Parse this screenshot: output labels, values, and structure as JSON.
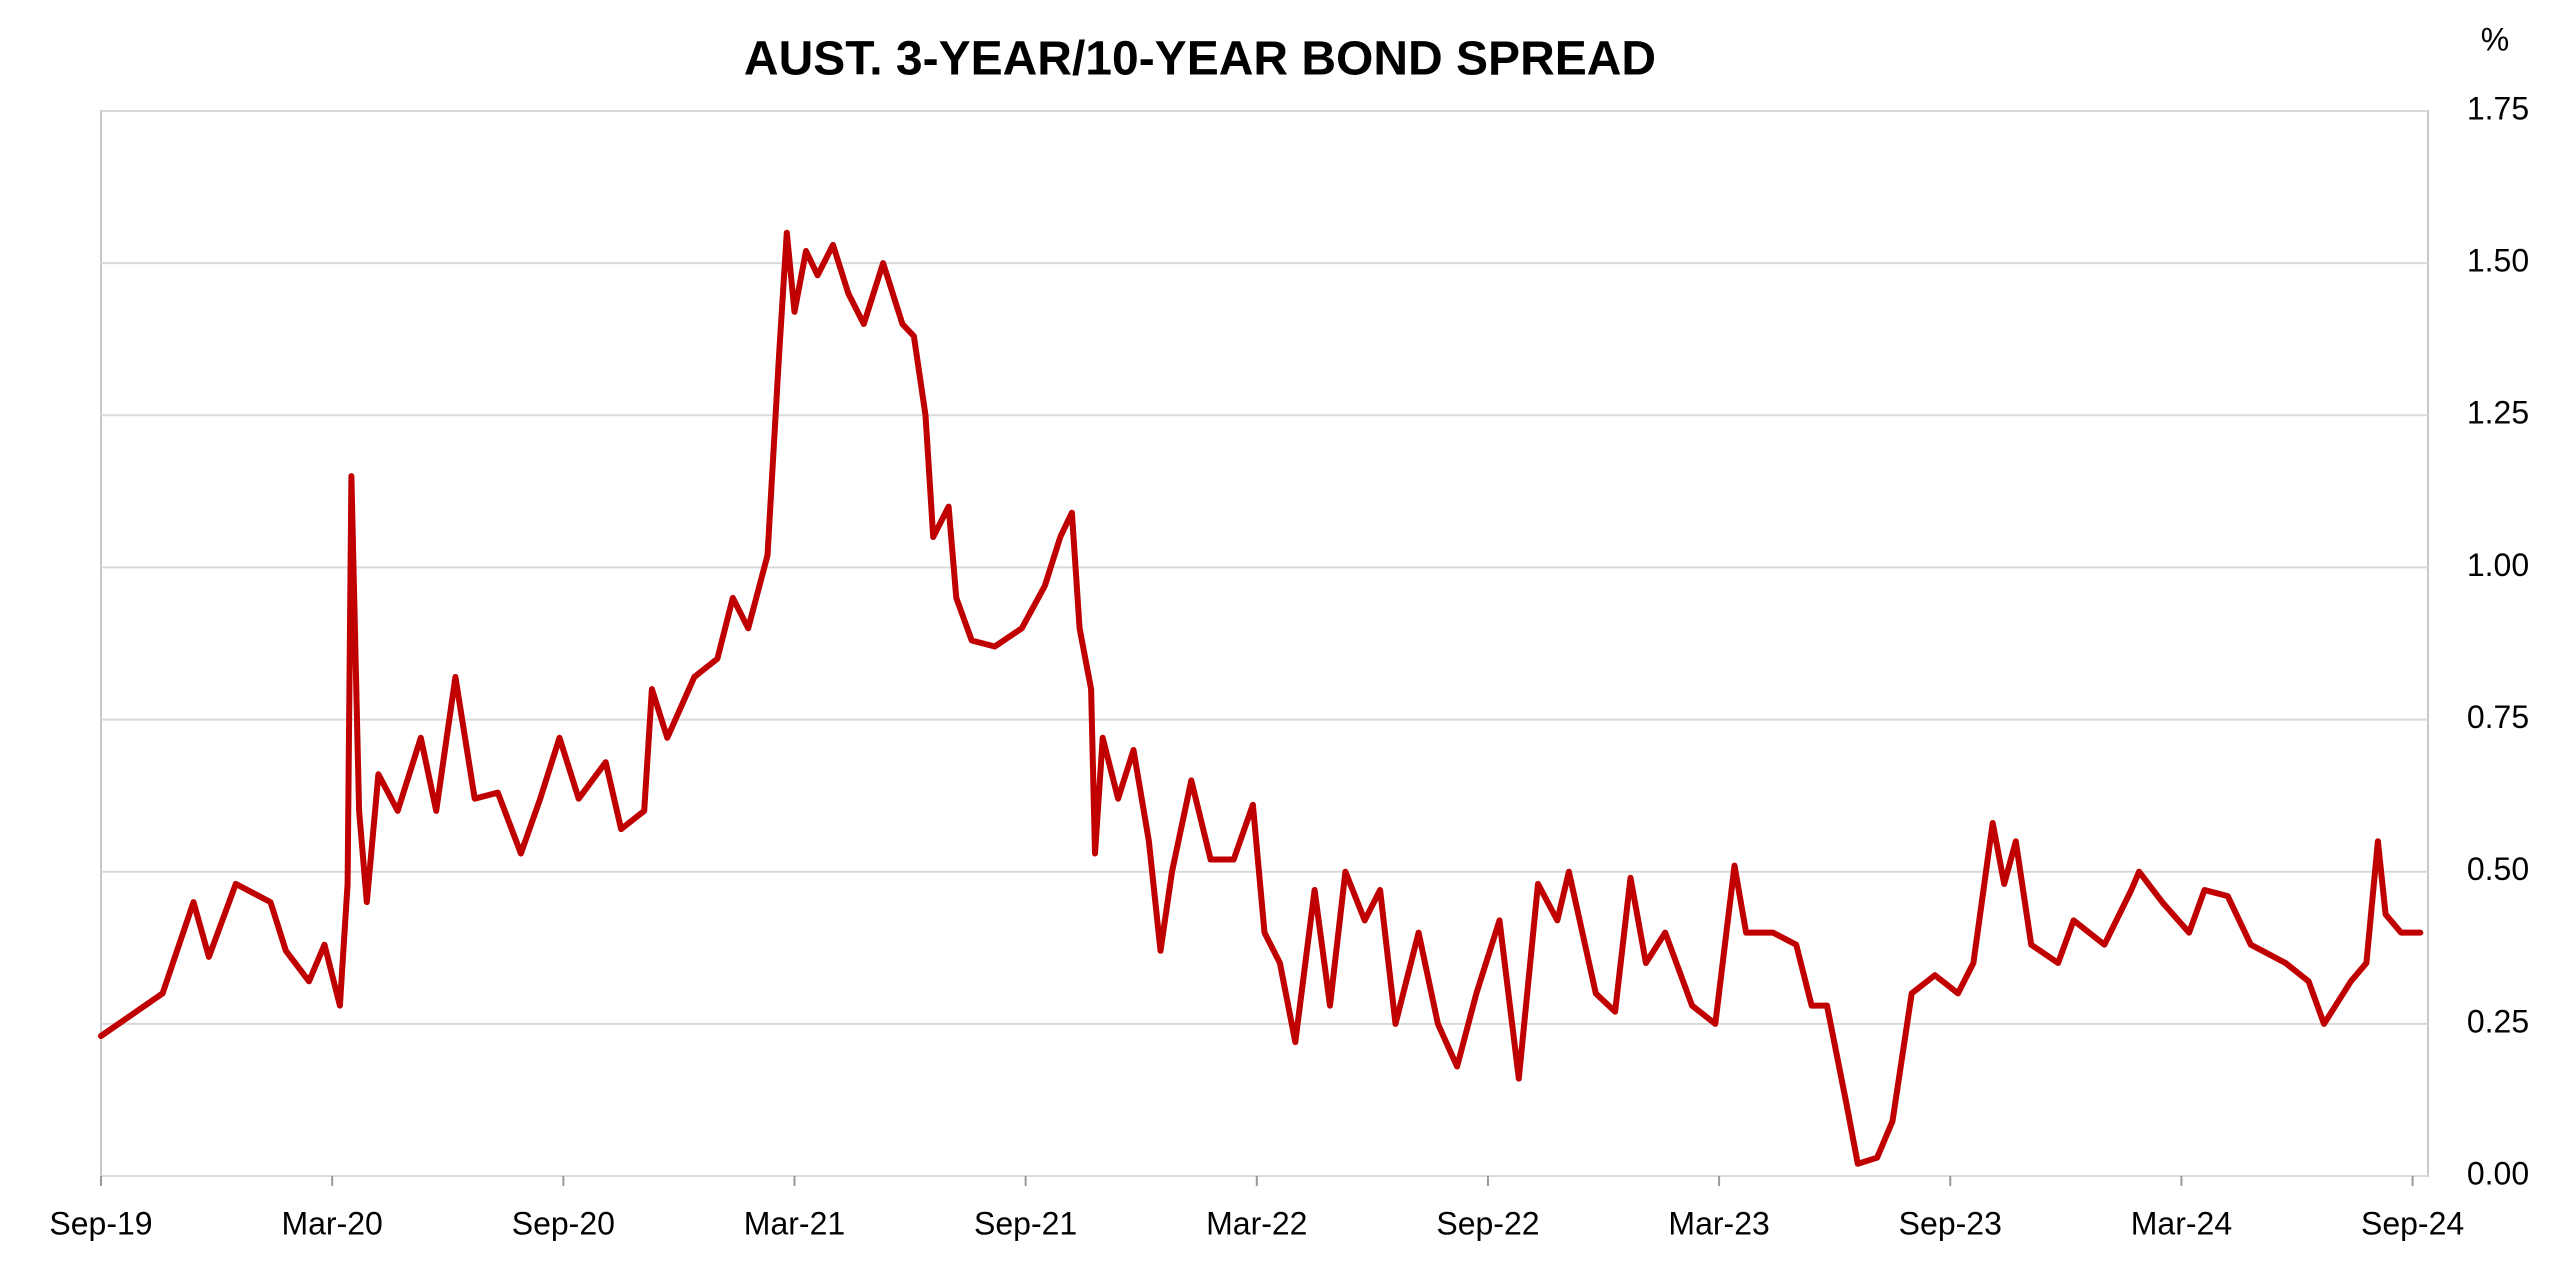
{
  "chart_data": {
    "type": "line",
    "title": "AUST. 3-YEAR/10-YEAR BOND SPREAD",
    "y_unit": "%",
    "color": "#c00000",
    "grid": true,
    "y_axis_side": "right",
    "x": [
      0,
      1.6,
      2.4,
      2.8,
      3.5,
      4.4,
      4.8,
      5.4,
      5.8,
      6.2,
      6.4,
      6.5,
      6.7,
      6.9,
      7.2,
      7.7,
      8.3,
      8.7,
      9.2,
      9.7,
      10.3,
      10.9,
      11.4,
      11.9,
      12.4,
      13.1,
      13.5,
      14.1,
      14.3,
      14.7,
      15.4,
      16.0,
      16.4,
      16.8,
      17.3,
      17.6,
      17.8,
      18.0,
      18.3,
      18.6,
      19.0,
      19.4,
      19.8,
      20.3,
      20.8,
      21.1,
      21.4,
      21.6,
      22.0,
      22.2,
      22.6,
      23.2,
      23.9,
      24.5,
      24.9,
      25.2,
      25.4,
      25.7,
      25.8,
      26.0,
      26.4,
      26.8,
      27.2,
      27.5,
      27.8,
      28.3,
      28.8,
      29.4,
      29.9,
      30.2,
      30.6,
      31.0,
      31.5,
      31.9,
      32.3,
      32.8,
      33.2,
      33.6,
      34.2,
      34.7,
      35.2,
      35.7,
      36.3,
      36.8,
      37.3,
      37.8,
      38.1,
      38.8,
      39.3,
      39.7,
      40.1,
      40.6,
      41.3,
      41.9,
      42.4,
      42.7,
      43.4,
      44.0,
      44.4,
      44.8,
      45.3,
      45.6,
      46.1,
      46.5,
      47.0,
      47.6,
      48.2,
      48.6,
      49.1,
      49.4,
      49.7,
      50.1,
      50.8,
      51.2,
      52.0,
      52.7,
      52.9,
      53.5,
      54.2,
      54.6,
      55.2,
      55.8,
      56.7,
      57.3,
      57.7,
      58.4,
      58.8,
      59.1,
      59.3,
      59.7,
      60.2
    ],
    "values": [
      0.23,
      0.3,
      0.45,
      0.36,
      0.48,
      0.45,
      0.37,
      0.32,
      0.38,
      0.28,
      0.48,
      1.15,
      0.6,
      0.45,
      0.66,
      0.6,
      0.72,
      0.6,
      0.82,
      0.62,
      0.63,
      0.53,
      0.62,
      0.72,
      0.62,
      0.68,
      0.57,
      0.6,
      0.8,
      0.72,
      0.82,
      0.85,
      0.95,
      0.9,
      1.02,
      1.35,
      1.55,
      1.42,
      1.52,
      1.48,
      1.53,
      1.45,
      1.4,
      1.5,
      1.4,
      1.38,
      1.25,
      1.05,
      1.1,
      0.95,
      0.88,
      0.87,
      0.9,
      0.97,
      1.05,
      1.09,
      0.9,
      0.8,
      0.53,
      0.72,
      0.62,
      0.7,
      0.55,
      0.37,
      0.5,
      0.65,
      0.52,
      0.52,
      0.61,
      0.4,
      0.35,
      0.22,
      0.47,
      0.28,
      0.5,
      0.42,
      0.47,
      0.25,
      0.4,
      0.25,
      0.18,
      0.3,
      0.42,
      0.16,
      0.48,
      0.42,
      0.5,
      0.3,
      0.27,
      0.49,
      0.35,
      0.4,
      0.28,
      0.25,
      0.51,
      0.4,
      0.4,
      0.38,
      0.28,
      0.28,
      0.12,
      0.02,
      0.03,
      0.09,
      0.3,
      0.33,
      0.3,
      0.35,
      0.58,
      0.48,
      0.55,
      0.38,
      0.35,
      0.42,
      0.38,
      0.47,
      0.5,
      0.45,
      0.4,
      0.47,
      0.46,
      0.38,
      0.35,
      0.32,
      0.25,
      0.32,
      0.35,
      0.55,
      0.43,
      0.4,
      0.4
    ],
    "xlim": [
      0,
      60.4
    ],
    "xticks": [
      {
        "value": 0,
        "label": "Sep-19"
      },
      {
        "value": 6,
        "label": "Mar-20"
      },
      {
        "value": 12,
        "label": "Sep-20"
      },
      {
        "value": 18,
        "label": "Mar-21"
      },
      {
        "value": 24,
        "label": "Sep-21"
      },
      {
        "value": 30,
        "label": "Mar-22"
      },
      {
        "value": 36,
        "label": "Sep-22"
      },
      {
        "value": 42,
        "label": "Mar-23"
      },
      {
        "value": 48,
        "label": "Sep-23"
      },
      {
        "value": 54,
        "label": "Mar-24"
      },
      {
        "value": 60,
        "label": "Sep-24"
      }
    ],
    "ylim": [
      0,
      1.75
    ],
    "yticks": [
      {
        "value": 0,
        "label": "0.00"
      },
      {
        "value": 0.25,
        "label": "0.25"
      },
      {
        "value": 0.5,
        "label": "0.50"
      },
      {
        "value": 0.75,
        "label": "0.75"
      },
      {
        "value": 1,
        "label": "1.00"
      },
      {
        "value": 1.25,
        "label": "1.25"
      },
      {
        "value": 1.5,
        "label": "1.50"
      },
      {
        "value": 1.75,
        "label": "1.75"
      }
    ]
  }
}
